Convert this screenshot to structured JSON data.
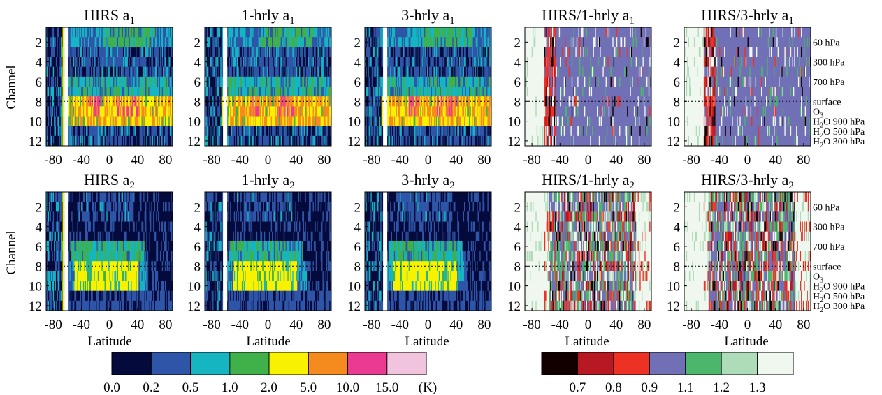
{
  "figure": {
    "row_ylabel": "Channel",
    "xlabel": "Latitude",
    "x_ticks": [
      "-80",
      "-40",
      "0",
      "40",
      "80"
    ],
    "y_ticks": [
      "2",
      "4",
      "6",
      "8",
      "10",
      "12"
    ],
    "right_labels": [
      {
        "text": "60 hPa",
        "channel": 2
      },
      {
        "text": "300 hPa",
        "channel": 4
      },
      {
        "text": "700 hPa",
        "channel": 6
      },
      {
        "text": "surface",
        "channel": 8
      },
      {
        "text": "O",
        "sub": "3",
        "rest": "",
        "channel": 9
      },
      {
        "text": "H",
        "sub": "2",
        "rest": "O 900 hPa",
        "channel": 10
      },
      {
        "text": "H",
        "sub": "2",
        "rest": "O 500 hPa",
        "channel": 11
      },
      {
        "text": "H",
        "sub": "2",
        "rest": "O 300 hPa",
        "channel": 12
      }
    ]
  },
  "panels": [
    {
      "row": 0,
      "col": 0,
      "title": "HIRS a",
      "sub": "1",
      "kind": "abs",
      "variant": 0
    },
    {
      "row": 0,
      "col": 1,
      "title": "1-hrly a",
      "sub": "1",
      "kind": "abs",
      "variant": 1
    },
    {
      "row": 0,
      "col": 2,
      "title": "3-hrly a",
      "sub": "1",
      "kind": "abs",
      "variant": 2
    },
    {
      "row": 0,
      "col": 3,
      "title": "HIRS/1-hrly a",
      "sub": "1",
      "kind": "ratio",
      "variant": 3
    },
    {
      "row": 0,
      "col": 4,
      "title": "HIRS/3-hrly a",
      "sub": "1",
      "kind": "ratio",
      "variant": 4
    },
    {
      "row": 1,
      "col": 0,
      "title": "HIRS a",
      "sub": "2",
      "kind": "abs2",
      "variant": 5
    },
    {
      "row": 1,
      "col": 1,
      "title": "1-hrly a",
      "sub": "2",
      "kind": "abs2",
      "variant": 6
    },
    {
      "row": 1,
      "col": 2,
      "title": "3-hrly a",
      "sub": "2",
      "kind": "abs2",
      "variant": 7
    },
    {
      "row": 1,
      "col": 3,
      "title": "HIRS/1-hrly a",
      "sub": "2",
      "kind": "ratio2",
      "variant": 8
    },
    {
      "row": 1,
      "col": 4,
      "title": "HIRS/3-hrly a",
      "sub": "2",
      "kind": "ratio2",
      "variant": 9
    }
  ],
  "colorbar_left": {
    "colors": [
      "#050a3c",
      "#2f55a8",
      "#15b5c2",
      "#40b04a",
      "#f8f200",
      "#f58b1e",
      "#ea3b91",
      "#f2c3dd"
    ],
    "labels": [
      "0.0",
      "0.2",
      "0.5",
      "1.0",
      "2.0",
      "5.0",
      "10.0",
      "15.0"
    ],
    "unit": "(K)"
  },
  "colorbar_right": {
    "colors": [
      "#120000",
      "#b81822",
      "#ed3125",
      "#7170b6",
      "#4cb66c",
      "#aedcb9",
      "#eff7ef"
    ],
    "labels": [
      "0.7",
      "0.8",
      "0.9",
      "1.1",
      "1.2",
      "1.3"
    ]
  },
  "chart_data": [
    {
      "type": "heatmap",
      "title": "HIRS a1 / 1-hrly a1 / 3-hrly a1",
      "xlabel": "Latitude",
      "ylabel": "Channel",
      "xlim": [
        -80,
        80
      ],
      "ylim": [
        1,
        12
      ],
      "approx_values_K": {
        "channels_1_2": "0.2-1.0 band, mostly 0.5-2.0 at 0 to 60",
        "channels_3_5": "0.0-0.5",
        "channels_6_7": "0.5-2.0",
        "channels_8_10": "2.0-15.0, peaks 10-15 near -20 and 20 to 40",
        "channels_11_12": "0.0-0.5"
      }
    },
    {
      "type": "heatmap",
      "title": "HIRS/1-hrly a1 and HIRS/3-hrly a1 ratios",
      "xlabel": "Latitude",
      "ylabel": "Channel",
      "xlim": [
        -80,
        80
      ],
      "ylim": [
        1,
        12
      ],
      "approx_values": "mostly 0.9-1.1 between -45 and 80; 1.3 south of -60; scattered 0.7-0.8 near -45"
    },
    {
      "type": "heatmap",
      "title": "HIRS a2 / 1-hrly a2 / 3-hrly a2",
      "xlabel": "Latitude",
      "ylabel": "Channel",
      "xlim": [
        -80,
        80
      ],
      "ylim": [
        1,
        12
      ],
      "approx_values_K": {
        "channels_1_3": "0.0-0.5",
        "channels_6_7": "0.5-2.0",
        "channels_8_10": "2.0-5.0 between -50 and 45",
        "channels_11_12": "0.0-0.2"
      }
    },
    {
      "type": "heatmap",
      "title": "HIRS/1-hrly a2 and HIRS/3-hrly a2 ratios",
      "xlabel": "Latitude",
      "ylabel": "Channel",
      "xlim": [
        -80,
        80
      ],
      "ylim": [
        1,
        12
      ],
      "approx_values": "mixed 0.7-1.3, 0.9-1.2 dominant at mid latitudes, 1.3 south of -55 and north of 65"
    }
  ]
}
